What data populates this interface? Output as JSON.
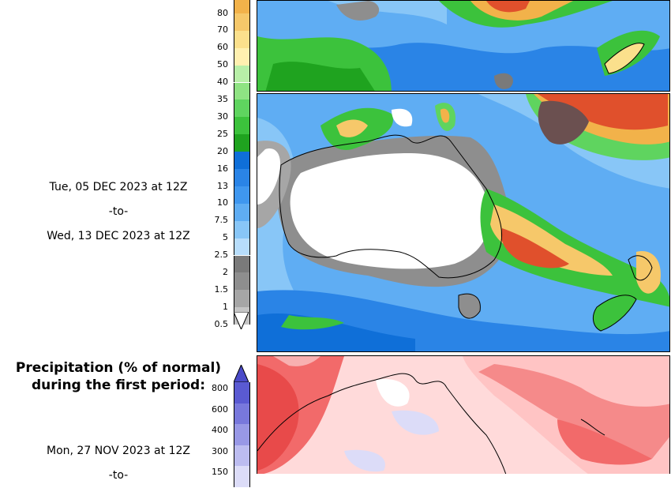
{
  "precip_legend": {
    "labels": [
      "80",
      "70",
      "60",
      "50",
      "40",
      "35",
      "30",
      "25",
      "20",
      "16",
      "13",
      "10",
      "7.5",
      "5",
      "2.5",
      "2",
      "1.5",
      "1",
      "0.5"
    ],
    "colors": [
      "#f2b24a",
      "#f6c86a",
      "#fbe08c",
      "#fff0b0",
      "#b8efa8",
      "#8fe383",
      "#5fd45f",
      "#3cc23c",
      "#1fa31f",
      "#0f6fd8",
      "#2a84e6",
      "#3f97ef",
      "#5fadf3",
      "#88c6f7",
      "#b7ddfb",
      "#7a7a7a",
      "#8e8e8e",
      "#a6a6a6",
      "#c4c4c4"
    ]
  },
  "period2": {
    "line1": "Tue, 05 DEC 2023 at 12Z",
    "line2": "-to-",
    "line3": "Wed, 13 DEC 2023 at 12Z"
  },
  "normal_section": {
    "title_line1": "Precipitation (% of normal)",
    "title_line2": "during the first period:",
    "labels": [
      "800",
      "600",
      "400",
      "300",
      "150"
    ],
    "colors": [
      "#5a5ad2",
      "#7878dc",
      "#9898e6",
      "#bcbcf0",
      "#dcdcf8"
    ],
    "line1": "Mon, 27 NOV 2023 at 12Z",
    "line2": "-to-"
  },
  "colors": {
    "ocean_light": "#bfe8f6",
    "land_dry": "#ffffff",
    "normal_bg": "#ffdada",
    "normal_red": "#f26a6a"
  }
}
